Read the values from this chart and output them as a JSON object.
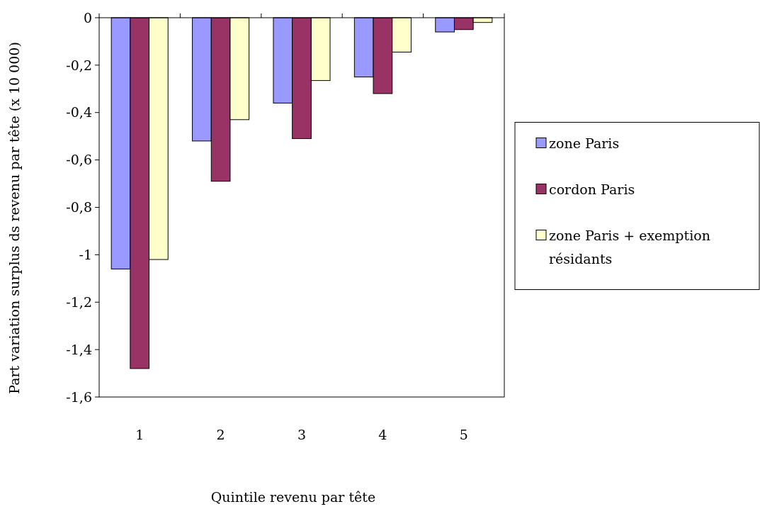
{
  "chart_data": {
    "type": "bar",
    "xlabel": "Quintile revenu par tête",
    "ylabel": "Part variation surplus ds revenu par tête (x 10 000)",
    "categories": [
      "1",
      "2",
      "3",
      "4",
      "5"
    ],
    "series": [
      {
        "name": "zone Paris",
        "color": "#9999ff",
        "values": [
          -1.06,
          -0.52,
          -0.36,
          -0.25,
          -0.06
        ]
      },
      {
        "name": "cordon Paris",
        "color": "#993366",
        "values": [
          -1.48,
          -0.69,
          -0.51,
          -0.32,
          -0.05
        ]
      },
      {
        "name": "zone Paris + exemption résidants",
        "color": "#ffffcc",
        "values": [
          -1.02,
          -0.43,
          -0.265,
          -0.145,
          -0.02
        ]
      }
    ],
    "ylim": [
      -1.6,
      0
    ],
    "yticks": [
      {
        "value": 0,
        "label": "0"
      },
      {
        "value": -0.2,
        "label": "-0,2"
      },
      {
        "value": -0.4,
        "label": "-0,4"
      },
      {
        "value": -0.6,
        "label": "-0,6"
      },
      {
        "value": -0.8,
        "label": "-0,8"
      },
      {
        "value": -1,
        "label": "-1"
      },
      {
        "value": -1.2,
        "label": "-1,2"
      },
      {
        "value": -1.4,
        "label": "-1,4"
      },
      {
        "value": -1.6,
        "label": "-1,6"
      }
    ],
    "grid": false,
    "legend": "right"
  }
}
